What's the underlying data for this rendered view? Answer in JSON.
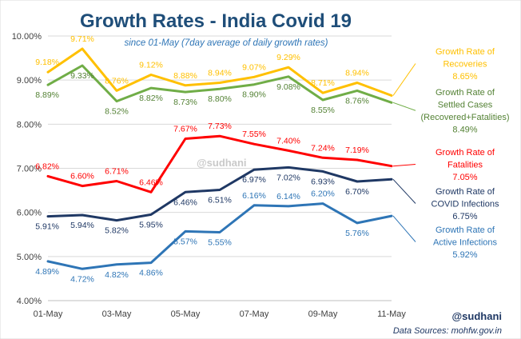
{
  "chart_data": {
    "type": "line",
    "title": "Growth Rates - India Covid 19",
    "subtitle": "since 01-May (7day average of daily growth rates)",
    "x": [
      "01-May",
      "02-May",
      "03-May",
      "04-May",
      "05-May",
      "06-May",
      "07-May",
      "08-May",
      "09-May",
      "10-May",
      "11-May"
    ],
    "x_ticks": [
      "01-May",
      "03-May",
      "05-May",
      "07-May",
      "09-May",
      "11-May"
    ],
    "ylim": [
      4.0,
      10.0
    ],
    "y_ticks": [
      "4.00%",
      "5.00%",
      "6.00%",
      "7.00%",
      "8.00%",
      "9.00%",
      "10.00%"
    ],
    "grid": true,
    "legend": "series labels at right end of lines",
    "series": [
      {
        "key": "recoveries",
        "name_lines": [
          "Growth Rate of",
          "Recoveries",
          "8.65%"
        ],
        "color": "#ffc000",
        "label_color": "#ffc000",
        "values": [
          9.18,
          9.71,
          8.76,
          9.12,
          8.88,
          8.94,
          9.07,
          9.29,
          8.71,
          8.94,
          8.65
        ],
        "labels": [
          "9.18%",
          "9.71%",
          "8.76%",
          "9.12%",
          "8.88%",
          "8.94%",
          "9.07%",
          "9.29%",
          "8.71%",
          "8.94%",
          ""
        ],
        "label_pos": [
          "above",
          "above",
          "above",
          "above",
          "above",
          "above",
          "above",
          "above",
          "above",
          "above",
          "above"
        ]
      },
      {
        "key": "settled",
        "name_lines": [
          "Growth Rate of",
          "Settled Cases",
          "(Recovered+Fatalities)",
          "8.49%"
        ],
        "color": "#70ad47",
        "label_color": "#548235",
        "values": [
          8.89,
          9.33,
          8.52,
          8.82,
          8.73,
          8.8,
          8.9,
          9.08,
          8.55,
          8.76,
          8.49
        ],
        "labels": [
          "8.89%",
          "9.33%",
          "8.52%",
          "8.82%",
          "8.73%",
          "8.80%",
          "8.90%",
          "9.08%",
          "8.55%",
          "8.76%",
          ""
        ],
        "label_pos": [
          "below",
          "below",
          "below",
          "below",
          "below",
          "below",
          "below",
          "below",
          "below",
          "below",
          "below"
        ]
      },
      {
        "key": "fatalities",
        "name_lines": [
          "Growth Rate of",
          "Fatalities",
          "7.05%"
        ],
        "color": "#ff0000",
        "label_color": "#ff0000",
        "values": [
          6.82,
          6.6,
          6.71,
          6.46,
          7.67,
          7.73,
          7.55,
          7.4,
          7.24,
          7.19,
          7.05
        ],
        "labels": [
          "6.82%",
          "6.60%",
          "6.71%",
          "6.46%",
          "7.67%",
          "7.73%",
          "7.55%",
          "7.40%",
          "7.24%",
          "7.19%",
          ""
        ],
        "label_pos": [
          "above",
          "above",
          "above",
          "above",
          "above",
          "above",
          "above",
          "above",
          "above",
          "above",
          "above"
        ]
      },
      {
        "key": "infections",
        "name_lines": [
          "Growth Rate of",
          "COVID Infections",
          "6.75%"
        ],
        "color": "#1f3864",
        "label_color": "#1f3864",
        "values": [
          5.91,
          5.94,
          5.82,
          5.95,
          6.46,
          6.51,
          6.97,
          7.02,
          6.93,
          6.7,
          6.75
        ],
        "labels": [
          "5.91%",
          "5.94%",
          "5.82%",
          "5.95%",
          "6.46%",
          "6.51%",
          "6.97%",
          "7.02%",
          "6.93%",
          "6.70%",
          ""
        ],
        "label_pos": [
          "below",
          "below",
          "below",
          "below",
          "below",
          "below",
          "below",
          "below",
          "below",
          "below",
          "below"
        ]
      },
      {
        "key": "active",
        "name_lines": [
          "Growth Rate of",
          "Active Infections",
          "5.92%"
        ],
        "color": "#2e75b6",
        "label_color": "#2e75b6",
        "values": [
          4.89,
          4.72,
          4.82,
          4.86,
          5.57,
          5.55,
          6.16,
          6.14,
          6.2,
          5.76,
          5.92
        ],
        "labels": [
          "4.89%",
          "4.72%",
          "4.82%",
          "4.86%",
          "5.57%",
          "5.55%",
          "6.16%",
          "6.14%",
          "6.20%",
          "5.76%",
          ""
        ],
        "label_pos": [
          "below",
          "below",
          "below",
          "below",
          "below",
          "below",
          "above",
          "above",
          "above",
          "below",
          "below"
        ]
      }
    ],
    "watermark": "@sudhani",
    "handle": "@sudhani",
    "source": "Data Sources: mohfw.gov.in"
  }
}
